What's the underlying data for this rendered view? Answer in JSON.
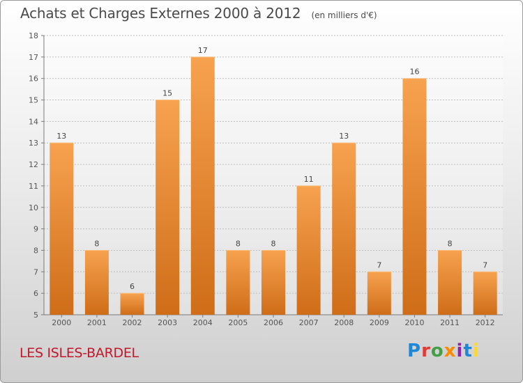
{
  "title": "Achats et Charges Externes 2000 à 2012",
  "subtitle": "(en milliers d'€)",
  "commune": "LES ISLES-BARDEL",
  "logo": {
    "text": "Proxiti",
    "letters": [
      "P",
      "r",
      "o",
      "x",
      "i",
      "t",
      "i"
    ]
  },
  "colors": {
    "bar_light": "#f7a24f",
    "bar_dark": "#cf6d18",
    "grid": "#bdbdbd",
    "axis": "#7a7a7a",
    "title": "#4a4a4a",
    "commune": "#c0182c"
  },
  "chart_data": {
    "type": "bar",
    "categories": [
      "2000",
      "2001",
      "2002",
      "2003",
      "2004",
      "2005",
      "2006",
      "2007",
      "2008",
      "2009",
      "2010",
      "2011",
      "2012"
    ],
    "values": [
      13,
      8,
      6,
      15,
      17,
      8,
      8,
      11,
      13,
      7,
      16,
      8,
      7
    ],
    "data_labels": [
      "13",
      "8",
      "6",
      "15",
      "17",
      "8",
      "8",
      "11",
      "13",
      "7",
      "16",
      "8",
      "7"
    ],
    "yticks": [
      5,
      6,
      7,
      8,
      9,
      10,
      11,
      12,
      13,
      14,
      15,
      16,
      17,
      18
    ],
    "ylim": [
      5,
      18
    ],
    "grid": true,
    "legend": "none"
  }
}
